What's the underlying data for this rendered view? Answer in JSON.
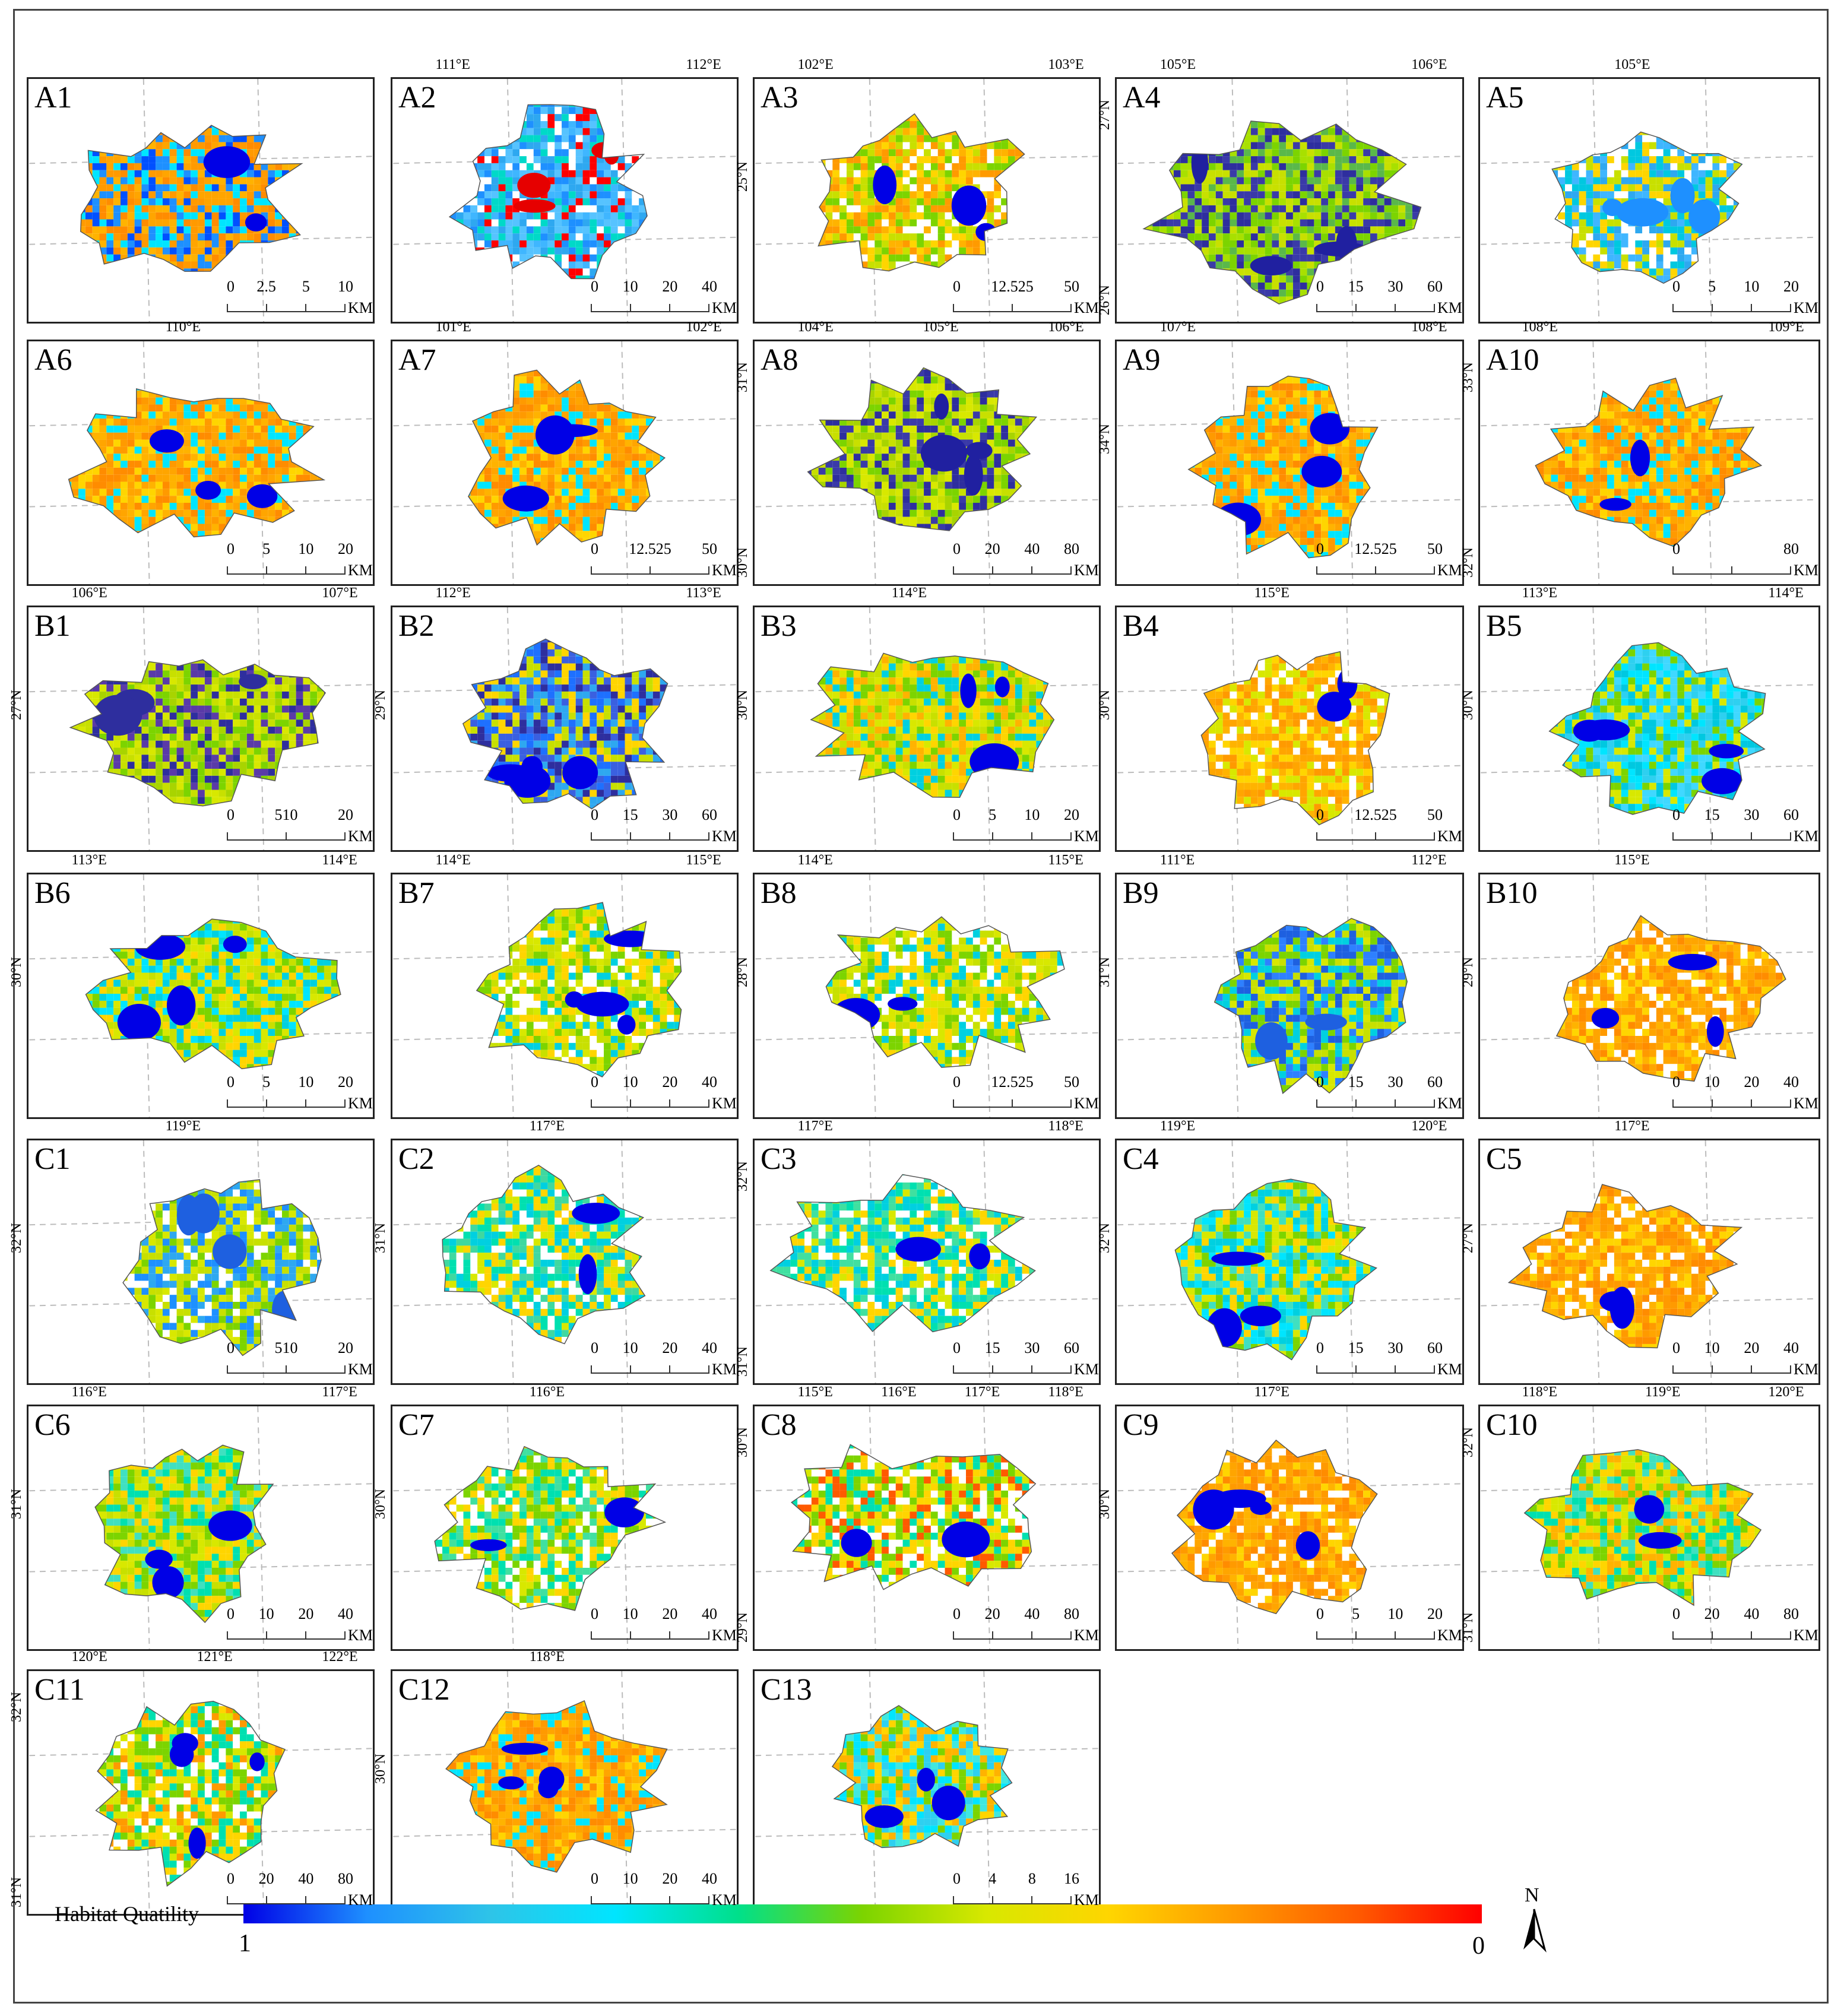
{
  "legend": {
    "title": "Habitat Quatility",
    "min_label": "1",
    "max_label": "0",
    "gradient_colors": [
      "#0000e6",
      "#1e90ff",
      "#2ec4e8",
      "#00e5ff",
      "#00e08a",
      "#7cd400",
      "#d8e800",
      "#ffd500",
      "#ff9a00",
      "#ff5a00",
      "#ff0000"
    ]
  },
  "north_arrow": {
    "label": "N"
  },
  "panels": [
    {
      "id": "A1",
      "label": "A1",
      "palette": [
        "#ff8c00",
        "#ff9a00",
        "#ffa500",
        "#ffb300",
        "#0050ff",
        "#00e5ff",
        "#1e90ff"
      ],
      "water": "#0000e6",
      "scale": {
        "ticks": [
          "0",
          "2.5",
          "5",
          "10"
        ],
        "unit": "KM"
      },
      "coords": []
    },
    {
      "id": "A2",
      "label": "A2",
      "palette": [
        "#1e90ff",
        "#2ea8f0",
        "#3fb6ff",
        "#56c3ff",
        "#ffffff",
        "#00d9c8",
        "#ff0000"
      ],
      "water": "#e60000",
      "scale": {
        "ticks": [
          "0",
          "10",
          "20",
          "40"
        ],
        "unit": "KM"
      },
      "coords": [
        "111°E",
        "112°E"
      ]
    },
    {
      "id": "A3",
      "label": "A3",
      "palette": [
        "#ffd500",
        "#ffb300",
        "#ff9a00",
        "#c8e000",
        "#ffffff",
        "#7cd400"
      ],
      "water": "#0000e6",
      "scale": {
        "ticks": [
          "0",
          "12.525",
          "50"
        ],
        "unit": "KM"
      },
      "coords": [
        "102°E",
        "103°E",
        "25°N"
      ]
    },
    {
      "id": "A4",
      "label": "A4",
      "palette": [
        "#7cd400",
        "#a8e000",
        "#5ab84a",
        "#3a3aa8",
        "#2e2e9e",
        "#c8e000"
      ],
      "water": "#2020a0",
      "scale": {
        "ticks": [
          "0",
          "15",
          "30",
          "60"
        ],
        "unit": "KM"
      },
      "coords": [
        "105°E",
        "106°E",
        "27°N",
        "26°N"
      ]
    },
    {
      "id": "A5",
      "label": "A5",
      "palette": [
        "#2ea8f0",
        "#3fb6ff",
        "#00c8e0",
        "#c8e000",
        "#ffd500",
        "#ffffff"
      ],
      "water": "#1e90ff",
      "scale": {
        "ticks": [
          "0",
          "5",
          "10",
          "20"
        ],
        "unit": "KM"
      },
      "coords": [
        "105°E"
      ]
    },
    {
      "id": "A6",
      "label": "A6",
      "palette": [
        "#ff8c00",
        "#ff9a00",
        "#ffa500",
        "#ffb300",
        "#ffd500",
        "#00e5ff"
      ],
      "water": "#0000e6",
      "scale": {
        "ticks": [
          "0",
          "5",
          "10",
          "20"
        ],
        "unit": "KM"
      },
      "coords": [
        "110°E"
      ]
    },
    {
      "id": "A7",
      "label": "A7",
      "palette": [
        "#ff8c00",
        "#ff9a00",
        "#ffa500",
        "#ffd500",
        "#ffb300",
        "#00e5ff"
      ],
      "water": "#0000e6",
      "scale": {
        "ticks": [
          "0",
          "12.525",
          "50"
        ],
        "unit": "KM"
      },
      "coords": [
        "101°E",
        "102°E"
      ]
    },
    {
      "id": "A8",
      "label": "A8",
      "palette": [
        "#c8e000",
        "#a8d400",
        "#3a3aa8",
        "#2e2e9e",
        "#d8e800",
        "#7cd400"
      ],
      "water": "#2020a0",
      "scale": {
        "ticks": [
          "0",
          "20",
          "40",
          "80"
        ],
        "unit": "KM"
      },
      "coords": [
        "104°E",
        "105°E",
        "106°E",
        "31°N",
        "30°N"
      ]
    },
    {
      "id": "A9",
      "label": "A9",
      "palette": [
        "#ff8c00",
        "#ff9a00",
        "#ffa500",
        "#ffd500",
        "#00e5ff",
        "#ffb300"
      ],
      "water": "#0000e6",
      "scale": {
        "ticks": [
          "0",
          "12.525",
          "50"
        ],
        "unit": "KM"
      },
      "coords": [
        "107°E",
        "108°E",
        "34°N"
      ]
    },
    {
      "id": "A10",
      "label": "A10",
      "palette": [
        "#ff8c00",
        "#ff9a00",
        "#ffa500",
        "#ffb300",
        "#ffd500",
        "#00e5ff"
      ],
      "water": "#0000e6",
      "scale": {
        "ticks": [
          "0",
          "",
          "80"
        ],
        "unit": "KM"
      },
      "coords": [
        "108°E",
        "109°E",
        "33°N",
        "32°N"
      ]
    },
    {
      "id": "B1",
      "label": "B1",
      "palette": [
        "#c8e000",
        "#a8d400",
        "#d8e800",
        "#7cd400",
        "#5a3aa8",
        "#2e2e9e"
      ],
      "water": "#2e2e9e",
      "scale": {
        "ticks": [
          "0",
          "510",
          "20"
        ],
        "unit": "KM"
      },
      "coords": [
        "106°E",
        "107°E",
        "27°N"
      ]
    },
    {
      "id": "B2",
      "label": "B2",
      "palette": [
        "#1e70ff",
        "#3a60e0",
        "#2ea8f0",
        "#c8e000",
        "#ffd500",
        "#2e2e9e"
      ],
      "water": "#0000e6",
      "scale": {
        "ticks": [
          "0",
          "15",
          "30",
          "60"
        ],
        "unit": "KM"
      },
      "coords": [
        "112°E",
        "113°E",
        "29°N"
      ]
    },
    {
      "id": "B3",
      "label": "B3",
      "palette": [
        "#d8e800",
        "#c8e000",
        "#ffd500",
        "#00d0e0",
        "#7cd400",
        "#ffb300"
      ],
      "water": "#0000e6",
      "scale": {
        "ticks": [
          "0",
          "5",
          "10",
          "20"
        ],
        "unit": "KM"
      },
      "coords": [
        "114°E",
        "30°N"
      ]
    },
    {
      "id": "B4",
      "label": "B4",
      "palette": [
        "#ffb300",
        "#ffa500",
        "#ffd500",
        "#ff9a00",
        "#d8e800",
        "#ffffff"
      ],
      "water": "#0000e6",
      "scale": {
        "ticks": [
          "0",
          "12.525",
          "50"
        ],
        "unit": "KM"
      },
      "coords": [
        "115°E",
        "30°N"
      ]
    },
    {
      "id": "B5",
      "label": "B5",
      "palette": [
        "#00e5ff",
        "#2ed0f0",
        "#00c8e0",
        "#40d8ff",
        "#7cd400",
        "#d8e800"
      ],
      "water": "#0000e6",
      "scale": {
        "ticks": [
          "0",
          "15",
          "30",
          "60"
        ],
        "unit": "KM"
      },
      "coords": [
        "113°E",
        "114°E",
        "30°N"
      ]
    },
    {
      "id": "B6",
      "label": "B6",
      "palette": [
        "#d8e800",
        "#c8e000",
        "#00d0e0",
        "#7cd400",
        "#ffd500",
        "#00e5ff"
      ],
      "water": "#0000e6",
      "scale": {
        "ticks": [
          "0",
          "5",
          "10",
          "20"
        ],
        "unit": "KM"
      },
      "coords": [
        "113°E",
        "114°E",
        "30°N"
      ]
    },
    {
      "id": "B7",
      "label": "B7",
      "palette": [
        "#c8e000",
        "#7cd400",
        "#00d0e0",
        "#ffd500",
        "#d8e800",
        "#ffffff"
      ],
      "water": "#0000e6",
      "scale": {
        "ticks": [
          "0",
          "10",
          "20",
          "40"
        ],
        "unit": "KM"
      },
      "coords": [
        "114°E",
        "115°E"
      ]
    },
    {
      "id": "B8",
      "label": "B8",
      "palette": [
        "#c8e000",
        "#d8e800",
        "#7cd400",
        "#00d0e0",
        "#ffd500",
        "#ffffff"
      ],
      "water": "#0000e6",
      "scale": {
        "ticks": [
          "0",
          "12.525",
          "50"
        ],
        "unit": "KM"
      },
      "coords": [
        "114°E",
        "115°E",
        "28°N"
      ]
    },
    {
      "id": "B9",
      "label": "B9",
      "palette": [
        "#7cd400",
        "#c8e000",
        "#00d0e0",
        "#2e80ff",
        "#d8e800",
        "#1e60e0"
      ],
      "water": "#1e60e0",
      "scale": {
        "ticks": [
          "0",
          "15",
          "30",
          "60"
        ],
        "unit": "KM"
      },
      "coords": [
        "111°E",
        "112°E",
        "31°N"
      ]
    },
    {
      "id": "B10",
      "label": "B10",
      "palette": [
        "#ff8c00",
        "#ff9a00",
        "#ffa500",
        "#ffb300",
        "#ffd500",
        "#ffffff"
      ],
      "water": "#0000e6",
      "scale": {
        "ticks": [
          "0",
          "10",
          "20",
          "40"
        ],
        "unit": "KM"
      },
      "coords": [
        "115°E",
        "29°N"
      ]
    },
    {
      "id": "C1",
      "label": "C1",
      "palette": [
        "#2ea8f0",
        "#1e90ff",
        "#d8e800",
        "#ffffff",
        "#7cd400",
        "#c8e000"
      ],
      "water": "#1e60e0",
      "scale": {
        "ticks": [
          "0",
          "510",
          "20"
        ],
        "unit": "KM"
      },
      "coords": [
        "119°E",
        "32°N"
      ]
    },
    {
      "id": "C2",
      "label": "C2",
      "palette": [
        "#00e0b0",
        "#40d8a0",
        "#d8e800",
        "#00d0e0",
        "#ffd500",
        "#ffffff"
      ],
      "water": "#0000e6",
      "scale": {
        "ticks": [
          "0",
          "10",
          "20",
          "40"
        ],
        "unit": "KM"
      },
      "coords": [
        "117°E",
        "31°N"
      ]
    },
    {
      "id": "C3",
      "label": "C3",
      "palette": [
        "#00e0b0",
        "#40e0a0",
        "#d8e800",
        "#ffd500",
        "#ffffff",
        "#00d0e0"
      ],
      "water": "#0000e6",
      "scale": {
        "ticks": [
          "0",
          "15",
          "30",
          "60"
        ],
        "unit": "KM"
      },
      "coords": [
        "117°E",
        "118°E",
        "32°N",
        "31°N"
      ]
    },
    {
      "id": "C4",
      "label": "C4",
      "palette": [
        "#00e5ff",
        "#40e0c0",
        "#d8e800",
        "#00d0e0",
        "#ffd500",
        "#7cd400"
      ],
      "water": "#0000e6",
      "scale": {
        "ticks": [
          "0",
          "15",
          "30",
          "60"
        ],
        "unit": "KM"
      },
      "coords": [
        "119°E",
        "120°E",
        "32°N"
      ]
    },
    {
      "id": "C5",
      "label": "C5",
      "palette": [
        "#ff8c00",
        "#ff9a00",
        "#ffa500",
        "#ffb300",
        "#ffd500",
        "#ffffff"
      ],
      "water": "#0000e6",
      "scale": {
        "ticks": [
          "0",
          "10",
          "20",
          "40"
        ],
        "unit": "KM"
      },
      "coords": [
        "117°E",
        "27°N"
      ]
    },
    {
      "id": "C6",
      "label": "C6",
      "palette": [
        "#d8e800",
        "#c8e000",
        "#00e0b0",
        "#ffd500",
        "#7cd400",
        "#40e0c0"
      ],
      "water": "#0000e6",
      "scale": {
        "ticks": [
          "0",
          "10",
          "20",
          "40"
        ],
        "unit": "KM"
      },
      "coords": [
        "116°E",
        "117°E",
        "31°N"
      ]
    },
    {
      "id": "C7",
      "label": "C7",
      "palette": [
        "#00e0b0",
        "#40e0a0",
        "#d8e800",
        "#ffd500",
        "#7cd400",
        "#ffffff"
      ],
      "water": "#0000e6",
      "scale": {
        "ticks": [
          "0",
          "10",
          "20",
          "40"
        ],
        "unit": "KM"
      },
      "coords": [
        "116°E",
        "30°N"
      ]
    },
    {
      "id": "C8",
      "label": "C8",
      "palette": [
        "#d8e800",
        "#7cd400",
        "#00e0b0",
        "#ffd500",
        "#ff5a00",
        "#ffffff"
      ],
      "water": "#0000e6",
      "scale": {
        "ticks": [
          "0",
          "20",
          "40",
          "80"
        ],
        "unit": "KM"
      },
      "coords": [
        "115°E",
        "116°E",
        "117°E",
        "118°E",
        "30°N",
        "29°N"
      ]
    },
    {
      "id": "C9",
      "label": "C9",
      "palette": [
        "#ff8c00",
        "#ff9a00",
        "#ffa500",
        "#ffb300",
        "#ffd500",
        "#ffffff"
      ],
      "water": "#0000e6",
      "scale": {
        "ticks": [
          "0",
          "5",
          "10",
          "20"
        ],
        "unit": "KM"
      },
      "coords": [
        "117°E",
        "30°N"
      ]
    },
    {
      "id": "C10",
      "label": "C10",
      "palette": [
        "#00e0b0",
        "#7cd400",
        "#d8e800",
        "#ffd500",
        "#40e0c0",
        "#ffb300"
      ],
      "water": "#0000e6",
      "scale": {
        "ticks": [
          "0",
          "20",
          "40",
          "80"
        ],
        "unit": "KM"
      },
      "coords": [
        "118°E",
        "119°E",
        "120°E",
        "32°N",
        "31°N"
      ]
    },
    {
      "id": "C11",
      "label": "C11",
      "palette": [
        "#00e0b0",
        "#d8e800",
        "#ffd500",
        "#7cd400",
        "#ff9a00",
        "#ffffff"
      ],
      "water": "#0000e6",
      "scale": {
        "ticks": [
          "0",
          "20",
          "40",
          "80"
        ],
        "unit": "KM"
      },
      "coords": [
        "120°E",
        "121°E",
        "122°E",
        "32°N",
        "31°N"
      ]
    },
    {
      "id": "C12",
      "label": "C12",
      "palette": [
        "#ff8c00",
        "#ff9a00",
        "#ffa500",
        "#ffb300",
        "#ffd500",
        "#00e5ff"
      ],
      "water": "#0000e6",
      "scale": {
        "ticks": [
          "0",
          "10",
          "20",
          "40"
        ],
        "unit": "KM"
      },
      "coords": [
        "118°E",
        "30°N"
      ]
    },
    {
      "id": "C13",
      "label": "C13",
      "palette": [
        "#00e5ff",
        "#40e8e0",
        "#2ed0f0",
        "#ffd500",
        "#7cd400",
        "#ffb300"
      ],
      "water": "#0000e6",
      "scale": {
        "ticks": [
          "0",
          "4",
          "8",
          "16"
        ],
        "unit": "KM"
      },
      "coords": []
    }
  ]
}
